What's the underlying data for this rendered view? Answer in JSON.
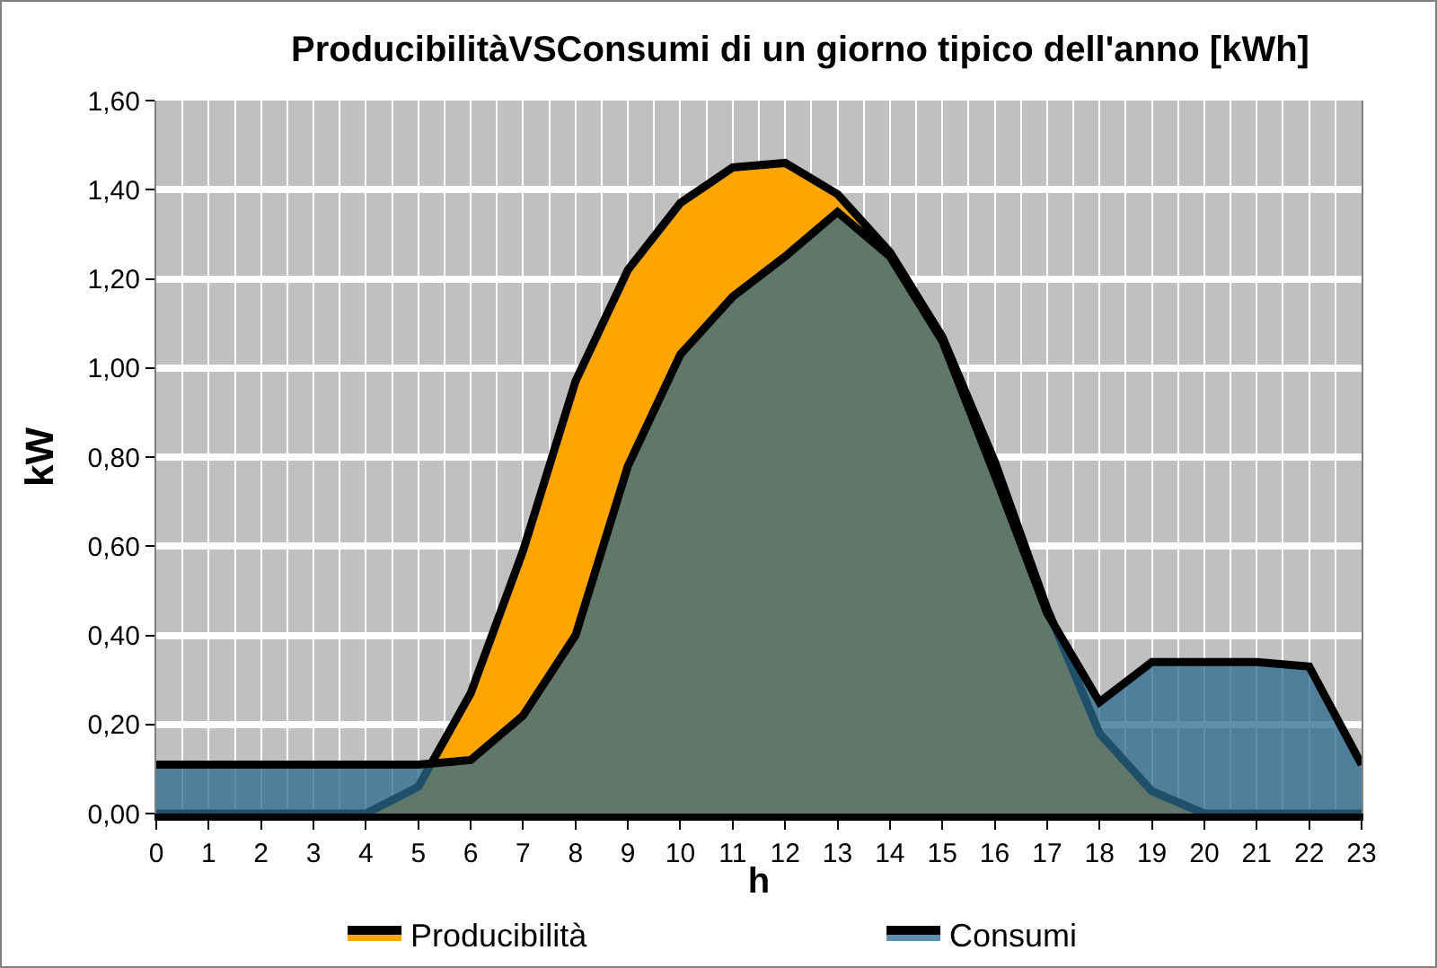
{
  "chart_data": {
    "type": "area",
    "title": "ProducibilitàVSConsumi di un giorno tipico dell'anno [kWh]",
    "xlabel": "h",
    "ylabel": "kW",
    "x": [
      0,
      1,
      2,
      3,
      4,
      5,
      6,
      7,
      8,
      9,
      10,
      11,
      12,
      13,
      14,
      15,
      16,
      17,
      18,
      19,
      20,
      21,
      22,
      23
    ],
    "series": [
      {
        "name": "Producibilità",
        "color": "#ffa500",
        "values": [
          0,
          0,
          0,
          0,
          0,
          0.06,
          0.27,
          0.59,
          0.97,
          1.22,
          1.37,
          1.45,
          1.46,
          1.39,
          1.26,
          1.07,
          0.79,
          0.46,
          0.18,
          0.05,
          0,
          0,
          0,
          0
        ]
      },
      {
        "name": "Consumi",
        "color": "#2a6a8e",
        "values": [
          0.11,
          0.11,
          0.11,
          0.11,
          0.11,
          0.11,
          0.12,
          0.22,
          0.4,
          0.78,
          1.03,
          1.16,
          1.25,
          1.35,
          1.25,
          1.06,
          0.76,
          0.45,
          0.25,
          0.34,
          0.34,
          0.34,
          0.33,
          0.11
        ]
      }
    ],
    "xlim": [
      0,
      23
    ],
    "xticks": [
      0,
      1,
      2,
      3,
      4,
      5,
      6,
      7,
      8,
      9,
      10,
      11,
      12,
      13,
      14,
      15,
      16,
      17,
      18,
      19,
      20,
      21,
      22,
      23
    ],
    "ylim": [
      0,
      1.6
    ],
    "yticks": [
      {
        "value": 0,
        "label": "0,00"
      },
      {
        "value": 0.2,
        "label": "0,20"
      },
      {
        "value": 0.4,
        "label": "0,40"
      },
      {
        "value": 0.6,
        "label": "0,60"
      },
      {
        "value": 0.8,
        "label": "0,80"
      },
      {
        "value": 1.0,
        "label": "1,00"
      },
      {
        "value": 1.2,
        "label": "1,20"
      },
      {
        "value": 1.4,
        "label": "1,40"
      },
      {
        "value": 1.6,
        "label": "1,60"
      }
    ],
    "grid": true,
    "legend": "bottom"
  }
}
